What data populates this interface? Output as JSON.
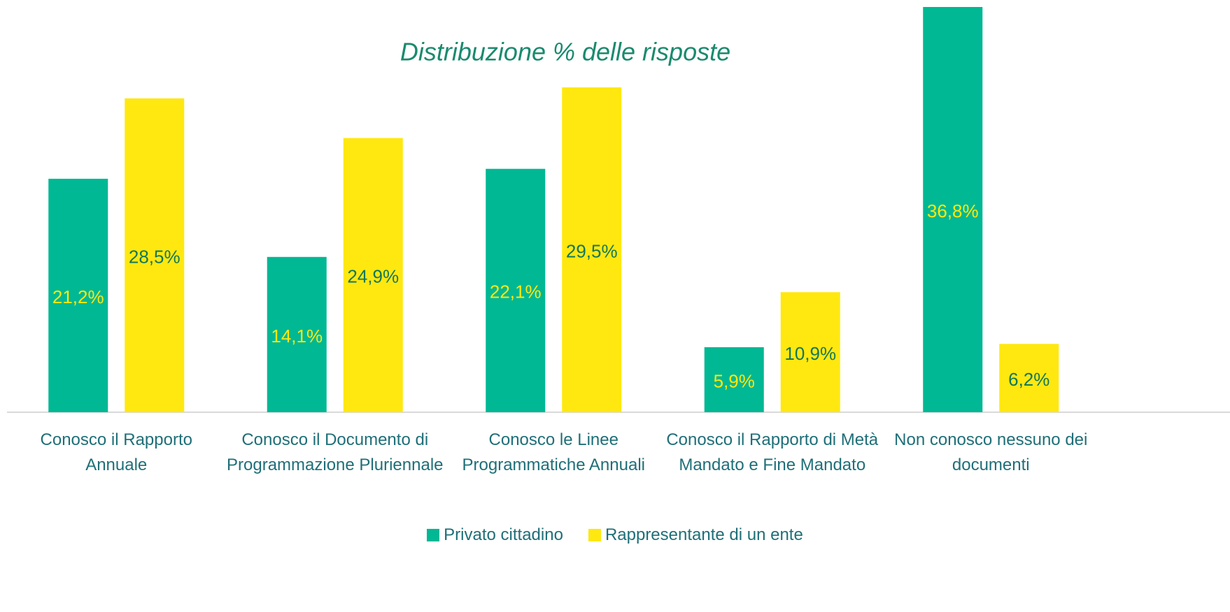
{
  "chart_data": {
    "type": "bar",
    "title": "Distribuzione % delle risposte",
    "categories": [
      "Conosco il Rapporto Annuale",
      "Conosco il Documento di Programmazione Pluriennale",
      "Conosco le Linee Programmatiche Annuali",
      "Conosco il Rapporto di Metà Mandato e Fine Mandato",
      "Non conosco nessuno dei documenti"
    ],
    "series": [
      {
        "name": "Privato cittadino",
        "color": "#00b894",
        "values": [
          21.2,
          14.1,
          22.1,
          5.9,
          36.8
        ],
        "value_labels": [
          "21,2%",
          "14,1%",
          "22,1%",
          "5,9%",
          "36,8%"
        ]
      },
      {
        "name": "Rappresentante di un ente",
        "color": "#ffe80f",
        "values": [
          28.5,
          24.9,
          29.5,
          10.9,
          6.2
        ],
        "value_labels": [
          "28,5%",
          "24,9%",
          "29,5%",
          "10,9%",
          "6,2%"
        ]
      }
    ],
    "legend": "bottom"
  }
}
